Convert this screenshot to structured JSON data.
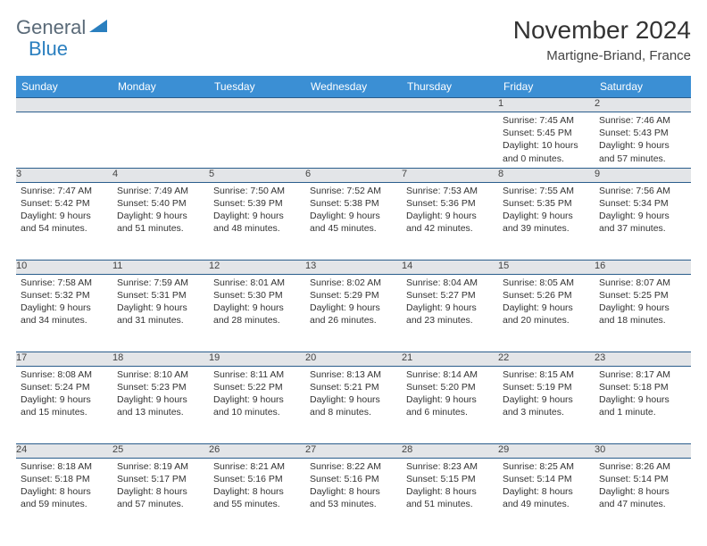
{
  "brand": {
    "part1": "General",
    "part2": "Blue"
  },
  "title": "November 2024",
  "location": "Martigne-Briand, France",
  "colors": {
    "header_bg": "#3b8fd4",
    "daynum_bg": "#e3e5e8",
    "border": "#2a5d8c",
    "brand_gray": "#5a6a78",
    "brand_blue": "#2a7fbf"
  },
  "weekdays": [
    "Sunday",
    "Monday",
    "Tuesday",
    "Wednesday",
    "Thursday",
    "Friday",
    "Saturday"
  ],
  "weeks": [
    [
      null,
      null,
      null,
      null,
      null,
      {
        "n": "1",
        "sr": "7:45 AM",
        "ss": "5:45 PM",
        "dl": "10 hours and 0 minutes."
      },
      {
        "n": "2",
        "sr": "7:46 AM",
        "ss": "5:43 PM",
        "dl": "9 hours and 57 minutes."
      }
    ],
    [
      {
        "n": "3",
        "sr": "7:47 AM",
        "ss": "5:42 PM",
        "dl": "9 hours and 54 minutes."
      },
      {
        "n": "4",
        "sr": "7:49 AM",
        "ss": "5:40 PM",
        "dl": "9 hours and 51 minutes."
      },
      {
        "n": "5",
        "sr": "7:50 AM",
        "ss": "5:39 PM",
        "dl": "9 hours and 48 minutes."
      },
      {
        "n": "6",
        "sr": "7:52 AM",
        "ss": "5:38 PM",
        "dl": "9 hours and 45 minutes."
      },
      {
        "n": "7",
        "sr": "7:53 AM",
        "ss": "5:36 PM",
        "dl": "9 hours and 42 minutes."
      },
      {
        "n": "8",
        "sr": "7:55 AM",
        "ss": "5:35 PM",
        "dl": "9 hours and 39 minutes."
      },
      {
        "n": "9",
        "sr": "7:56 AM",
        "ss": "5:34 PM",
        "dl": "9 hours and 37 minutes."
      }
    ],
    [
      {
        "n": "10",
        "sr": "7:58 AM",
        "ss": "5:32 PM",
        "dl": "9 hours and 34 minutes."
      },
      {
        "n": "11",
        "sr": "7:59 AM",
        "ss": "5:31 PM",
        "dl": "9 hours and 31 minutes."
      },
      {
        "n": "12",
        "sr": "8:01 AM",
        "ss": "5:30 PM",
        "dl": "9 hours and 28 minutes."
      },
      {
        "n": "13",
        "sr": "8:02 AM",
        "ss": "5:29 PM",
        "dl": "9 hours and 26 minutes."
      },
      {
        "n": "14",
        "sr": "8:04 AM",
        "ss": "5:27 PM",
        "dl": "9 hours and 23 minutes."
      },
      {
        "n": "15",
        "sr": "8:05 AM",
        "ss": "5:26 PM",
        "dl": "9 hours and 20 minutes."
      },
      {
        "n": "16",
        "sr": "8:07 AM",
        "ss": "5:25 PM",
        "dl": "9 hours and 18 minutes."
      }
    ],
    [
      {
        "n": "17",
        "sr": "8:08 AM",
        "ss": "5:24 PM",
        "dl": "9 hours and 15 minutes."
      },
      {
        "n": "18",
        "sr": "8:10 AM",
        "ss": "5:23 PM",
        "dl": "9 hours and 13 minutes."
      },
      {
        "n": "19",
        "sr": "8:11 AM",
        "ss": "5:22 PM",
        "dl": "9 hours and 10 minutes."
      },
      {
        "n": "20",
        "sr": "8:13 AM",
        "ss": "5:21 PM",
        "dl": "9 hours and 8 minutes."
      },
      {
        "n": "21",
        "sr": "8:14 AM",
        "ss": "5:20 PM",
        "dl": "9 hours and 6 minutes."
      },
      {
        "n": "22",
        "sr": "8:15 AM",
        "ss": "5:19 PM",
        "dl": "9 hours and 3 minutes."
      },
      {
        "n": "23",
        "sr": "8:17 AM",
        "ss": "5:18 PM",
        "dl": "9 hours and 1 minute."
      }
    ],
    [
      {
        "n": "24",
        "sr": "8:18 AM",
        "ss": "5:18 PM",
        "dl": "8 hours and 59 minutes."
      },
      {
        "n": "25",
        "sr": "8:19 AM",
        "ss": "5:17 PM",
        "dl": "8 hours and 57 minutes."
      },
      {
        "n": "26",
        "sr": "8:21 AM",
        "ss": "5:16 PM",
        "dl": "8 hours and 55 minutes."
      },
      {
        "n": "27",
        "sr": "8:22 AM",
        "ss": "5:16 PM",
        "dl": "8 hours and 53 minutes."
      },
      {
        "n": "28",
        "sr": "8:23 AM",
        "ss": "5:15 PM",
        "dl": "8 hours and 51 minutes."
      },
      {
        "n": "29",
        "sr": "8:25 AM",
        "ss": "5:14 PM",
        "dl": "8 hours and 49 minutes."
      },
      {
        "n": "30",
        "sr": "8:26 AM",
        "ss": "5:14 PM",
        "dl": "8 hours and 47 minutes."
      }
    ]
  ],
  "labels": {
    "sunrise": "Sunrise:",
    "sunset": "Sunset:",
    "daylight": "Daylight:"
  }
}
